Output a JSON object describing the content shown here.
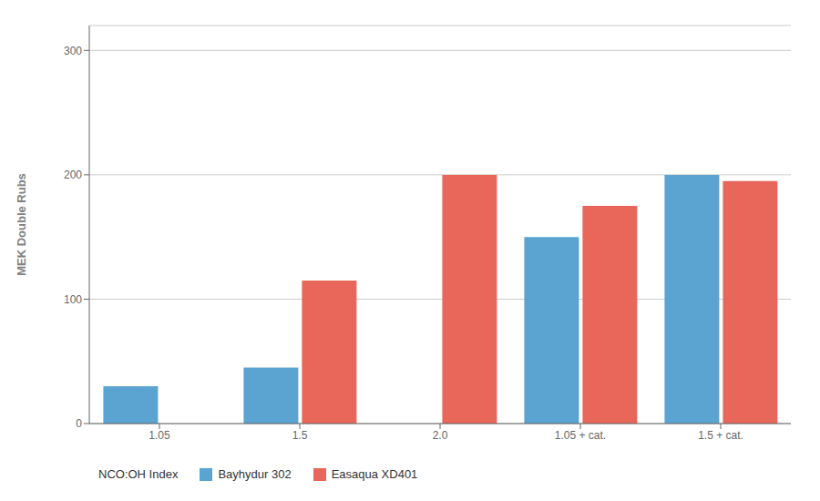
{
  "chart_data": {
    "type": "bar",
    "ylabel": "MEK Double Rubs",
    "xlabel": "NCO:OH Index",
    "categories": [
      "1.05",
      "1.5",
      "2.0",
      "1.05 + cat.",
      "1.5 + cat."
    ],
    "series": [
      {
        "name": "Bayhydur 302",
        "color": "#5ba3d0",
        "values": [
          30,
          45,
          0,
          150,
          200
        ]
      },
      {
        "name": "Easaqua XD401",
        "color": "#e8675a",
        "values": [
          0,
          115,
          200,
          175,
          195
        ]
      }
    ],
    "ylim": [
      0,
      320
    ],
    "yticks": [
      0,
      100,
      200,
      300
    ],
    "grid": true,
    "legend": "bottom"
  }
}
